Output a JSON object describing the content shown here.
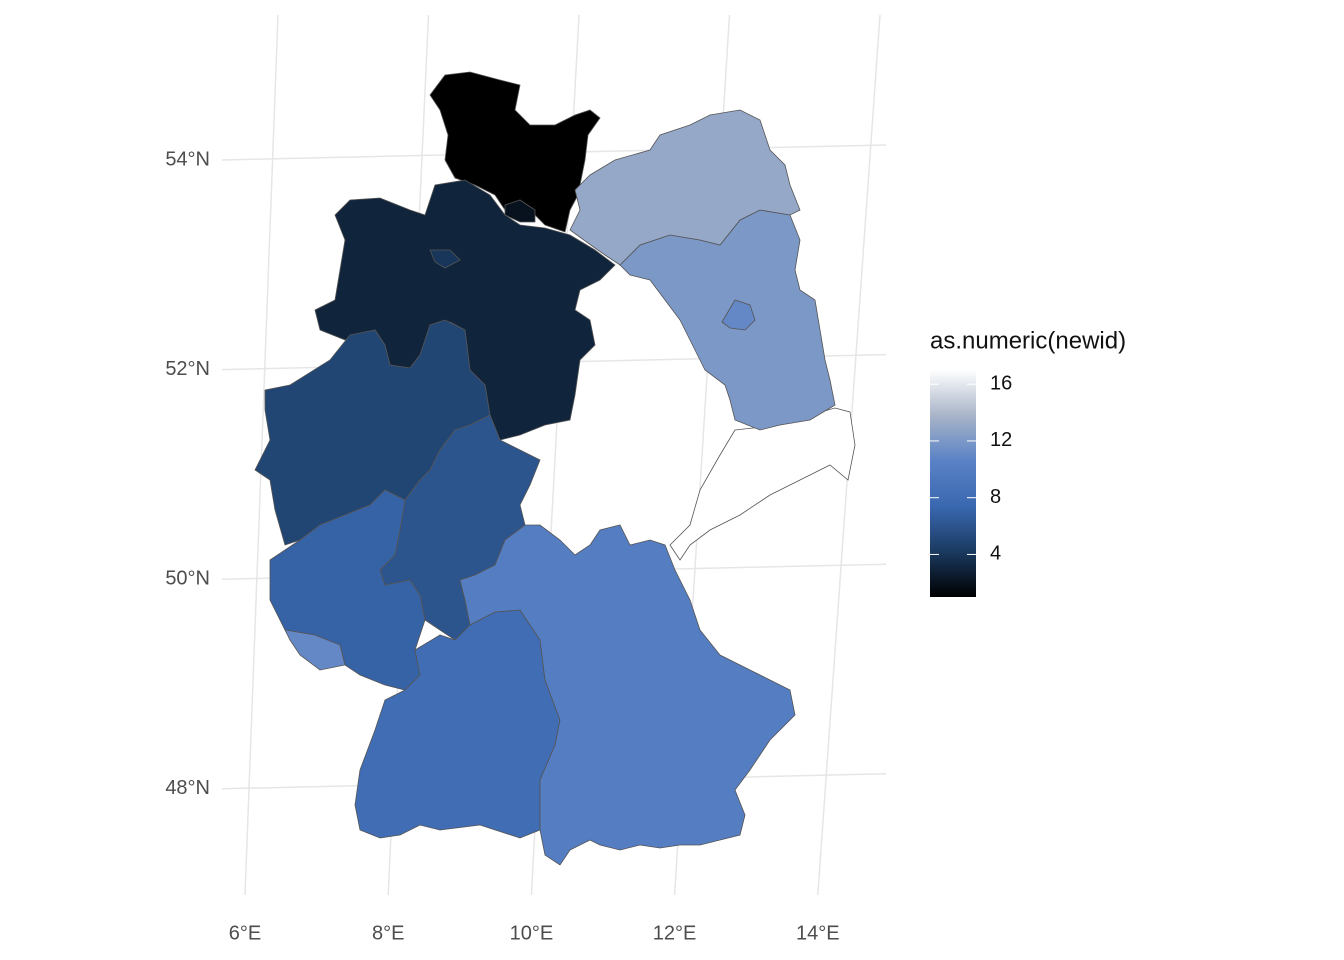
{
  "chart_data": {
    "type": "choropleth",
    "values": [
      1,
      2,
      3,
      4,
      5,
      6,
      7,
      11,
      8,
      10,
      17,
      12,
      11,
      13
    ],
    "colorlim": [
      1,
      17
    ],
    "colors": [
      "#000000",
      "#1a3a60",
      "#3a68b0",
      "#5a82c6",
      "#a8b4c8",
      "#ffffff"
    ],
    "colorbar_title": "as.numeric(newid)",
    "colorbar_ticks": [
      4,
      8,
      12,
      16
    ],
    "xticks": [
      {
        "value": 6,
        "label": "6°E"
      },
      {
        "value": 8,
        "label": "8°E"
      },
      {
        "value": 10,
        "label": "10°E"
      },
      {
        "value": 12,
        "label": "12°E"
      },
      {
        "value": 14,
        "label": "14°E"
      }
    ],
    "yticks": [
      {
        "value": 54,
        "label": "54°N"
      },
      {
        "value": 52,
        "label": "52°N"
      },
      {
        "value": 50,
        "label": "50°N"
      },
      {
        "value": 48,
        "label": "48°N"
      }
    ],
    "grid": true
  }
}
